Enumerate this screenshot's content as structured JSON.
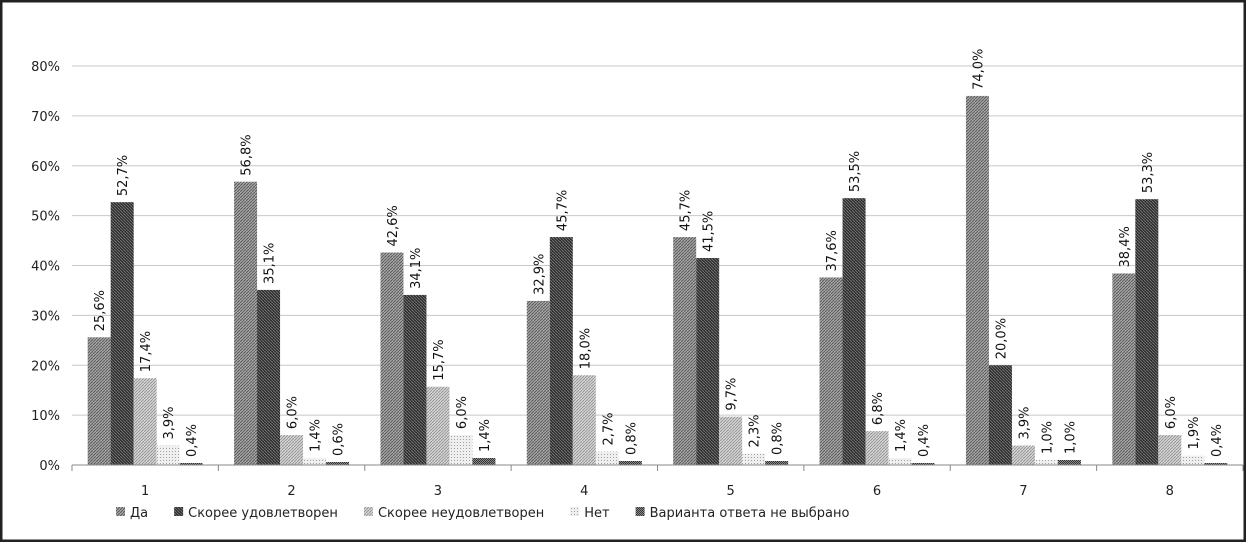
{
  "chart_data": {
    "type": "bar",
    "categories": [
      "1",
      "2",
      "3",
      "4",
      "5",
      "6",
      "7",
      "8"
    ],
    "series": [
      {
        "name": "Да",
        "values": [
          25.6,
          56.8,
          42.6,
          32.9,
          45.7,
          37.6,
          74.0,
          38.4
        ],
        "labels": [
          "25,6%",
          "56,8%",
          "42,6%",
          "32,9%",
          "45,7%",
          "37,6%",
          "74,0%",
          "38,4%"
        ],
        "pattern": "dense-diagonal",
        "color": "#8c8c8c"
      },
      {
        "name": "Скорее удовлетворен",
        "values": [
          52.7,
          35.1,
          34.1,
          45.7,
          41.5,
          53.5,
          20.0,
          53.3
        ],
        "labels": [
          "52,7%",
          "35,1%",
          "34,1%",
          "45,7%",
          "41,5%",
          "53,5%",
          "20,0%",
          "53,3%"
        ],
        "pattern": "dark-crosshatch",
        "color": "#3a3a3a"
      },
      {
        "name": "Скорее неудовлетворен",
        "values": [
          17.4,
          6.0,
          15.7,
          18.0,
          9.7,
          6.8,
          3.9,
          6.0
        ],
        "labels": [
          "17,4%",
          "6,0%",
          "15,7%",
          "18,0%",
          "9,7%",
          "6,8%",
          "3,9%",
          "6,0%"
        ],
        "pattern": "light-diagonal",
        "color": "#b4b4b4"
      },
      {
        "name": "Нет",
        "values": [
          3.9,
          1.4,
          6.0,
          2.7,
          2.3,
          1.4,
          1.0,
          1.9
        ],
        "labels": [
          "3,9%",
          "1,4%",
          "6,0%",
          "2,7%",
          "2,3%",
          "1,4%",
          "1,0%",
          "1,9%"
        ],
        "pattern": "very-light-dots",
        "color": "#d8d8d8"
      },
      {
        "name": "Варианта ответа не выбрано",
        "values": [
          0.4,
          0.6,
          1.4,
          0.8,
          0.8,
          0.4,
          1.0,
          0.4
        ],
        "labels": [
          "0,4%",
          "0,6%",
          "1,4%",
          "0,8%",
          "0,8%",
          "0,4%",
          "1,0%",
          "0,4%"
        ],
        "pattern": "dark-checker",
        "color": "#6e6e6e"
      }
    ],
    "y_ticks": [
      "0%",
      "10%",
      "20%",
      "30%",
      "40%",
      "50%",
      "60%",
      "70%",
      "80%"
    ],
    "ylim": [
      0,
      80
    ],
    "grid": true,
    "legend_position": "bottom-left",
    "title": "",
    "xlabel": "",
    "ylabel": ""
  }
}
